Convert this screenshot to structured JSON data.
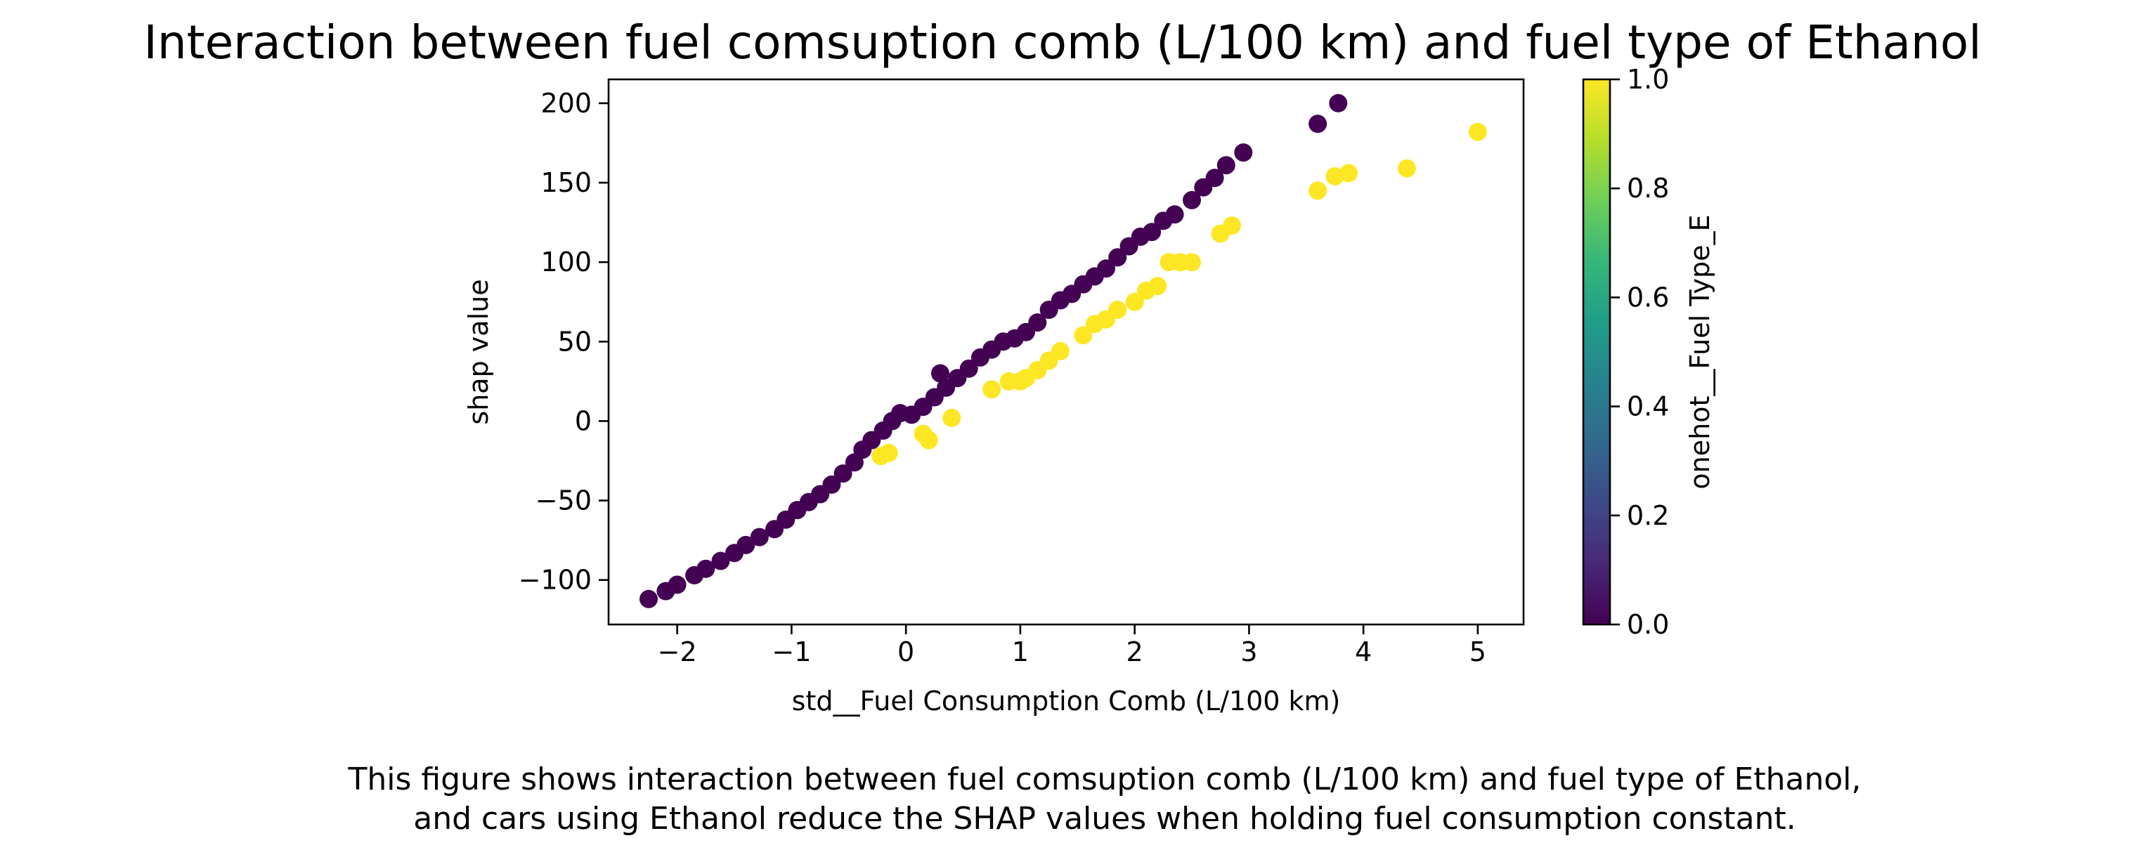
{
  "title": "Interaction between fuel comsuption comb (L/100 km) and fuel type of Ethanol",
  "caption": [
    "This figure shows interaction between fuel comsuption comb (L/100 km) and fuel type of Ethanol,",
    "and cars using Ethanol reduce the SHAP values when holding fuel consumption constant."
  ],
  "chart_data": {
    "type": "scatter",
    "xlabel": "std__Fuel Consumption Comb (L/100 km)",
    "ylabel": "shap value",
    "xlim": [
      -2.6,
      5.4
    ],
    "ylim": [
      -128,
      215
    ],
    "xticks": [
      -2,
      -1,
      0,
      1,
      2,
      3,
      4,
      5
    ],
    "xtick_labels": [
      "−2",
      "−1",
      "0",
      "1",
      "2",
      "3",
      "4",
      "5"
    ],
    "yticks": [
      -100,
      -50,
      0,
      50,
      100,
      150,
      200
    ],
    "ytick_labels": [
      "−100",
      "−50",
      "0",
      "50",
      "100",
      "150",
      "200"
    ],
    "colorbar": {
      "label": "onehot__Fuel Type_E",
      "range": [
        0,
        1
      ],
      "ticks": [
        0.0,
        0.2,
        0.4,
        0.6,
        0.8,
        1.0
      ],
      "tick_labels": [
        "0.0",
        "0.2",
        "0.4",
        "0.6",
        "0.8",
        "1.0"
      ],
      "colormap": "viridis",
      "stops": [
        "#440154",
        "#482878",
        "#3e4989",
        "#31688e",
        "#26828e",
        "#1f9e89",
        "#35b779",
        "#6ece58",
        "#b5de2b",
        "#fde725"
      ]
    },
    "series": [
      {
        "color_value": 0,
        "color": "#440154",
        "points": [
          [
            -2.25,
            -112
          ],
          [
            -2.1,
            -107
          ],
          [
            -2.0,
            -103
          ],
          [
            -1.85,
            -97
          ],
          [
            -1.75,
            -93
          ],
          [
            -1.62,
            -88
          ],
          [
            -1.5,
            -83
          ],
          [
            -1.4,
            -78
          ],
          [
            -1.28,
            -73
          ],
          [
            -1.15,
            -68
          ],
          [
            -1.05,
            -62
          ],
          [
            -0.95,
            -56
          ],
          [
            -0.85,
            -51
          ],
          [
            -0.75,
            -46
          ],
          [
            -0.65,
            -40
          ],
          [
            -0.55,
            -33
          ],
          [
            -0.45,
            -26
          ],
          [
            -0.38,
            -18
          ],
          [
            -0.3,
            -12
          ],
          [
            -0.2,
            -6
          ],
          [
            -0.12,
            0
          ],
          [
            -0.05,
            5
          ],
          [
            0.05,
            4
          ],
          [
            0.15,
            9
          ],
          [
            0.25,
            15
          ],
          [
            0.3,
            30
          ],
          [
            0.35,
            21
          ],
          [
            0.45,
            27
          ],
          [
            0.55,
            33
          ],
          [
            0.65,
            40
          ],
          [
            0.75,
            45
          ],
          [
            0.85,
            50
          ],
          [
            0.95,
            52
          ],
          [
            1.05,
            56
          ],
          [
            1.15,
            62
          ],
          [
            1.25,
            70
          ],
          [
            1.35,
            76
          ],
          [
            1.45,
            80
          ],
          [
            1.55,
            86
          ],
          [
            1.65,
            91
          ],
          [
            1.75,
            96
          ],
          [
            1.85,
            103
          ],
          [
            1.95,
            110
          ],
          [
            2.05,
            116
          ],
          [
            2.15,
            119
          ],
          [
            2.25,
            126
          ],
          [
            2.35,
            130
          ],
          [
            2.5,
            139
          ],
          [
            2.6,
            147
          ],
          [
            2.7,
            153
          ],
          [
            2.8,
            161
          ],
          [
            2.95,
            169
          ],
          [
            3.6,
            187
          ],
          [
            3.78,
            200
          ]
        ]
      },
      {
        "color_value": 1,
        "color": "#fde725",
        "points": [
          [
            -0.22,
            -22
          ],
          [
            -0.15,
            -20
          ],
          [
            0.15,
            -8
          ],
          [
            0.2,
            -12
          ],
          [
            0.4,
            2
          ],
          [
            0.75,
            20
          ],
          [
            0.9,
            25
          ],
          [
            1.0,
            25
          ],
          [
            1.05,
            27
          ],
          [
            1.15,
            32
          ],
          [
            1.25,
            38
          ],
          [
            1.35,
            44
          ],
          [
            1.55,
            54
          ],
          [
            1.65,
            61
          ],
          [
            1.75,
            64
          ],
          [
            1.85,
            70
          ],
          [
            2.0,
            75
          ],
          [
            2.1,
            82
          ],
          [
            2.2,
            85
          ],
          [
            2.3,
            100
          ],
          [
            2.4,
            100
          ],
          [
            2.5,
            100
          ],
          [
            2.75,
            118
          ],
          [
            2.85,
            123
          ],
          [
            3.6,
            145
          ],
          [
            3.75,
            154
          ],
          [
            3.87,
            156
          ],
          [
            4.38,
            159
          ],
          [
            5.0,
            182
          ]
        ]
      }
    ]
  }
}
